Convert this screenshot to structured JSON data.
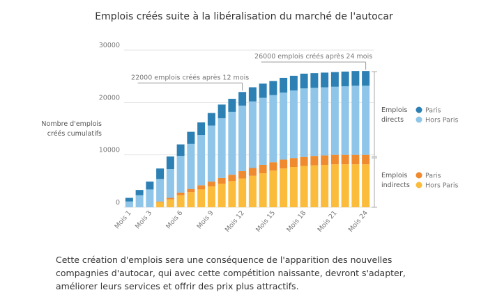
{
  "chart_data": {
    "type": "stacked-bar",
    "title": "Emplois créés suite à la libéralisation du marché de l'autocar",
    "y_label": "Nombre d'emplois créés cumulatifs",
    "categories": [
      "Mois 1",
      null,
      "Mois 3",
      null,
      null,
      "Mois 6",
      null,
      null,
      "Mois 9",
      null,
      null,
      "Mois 12",
      null,
      null,
      "Mois 15",
      null,
      null,
      "Mois 18",
      null,
      null,
      "Mois 21",
      null,
      null,
      "Mois 24"
    ],
    "series": [
      {
        "name": "Hors Paris",
        "group": "Emplois indirects",
        "color": "#fbbb3b",
        "values": [
          0,
          0,
          0,
          1000,
          1500,
          2300,
          2900,
          3400,
          4000,
          4500,
          5000,
          5500,
          6000,
          6500,
          7000,
          7400,
          7700,
          7900,
          8000,
          8100,
          8200,
          8200,
          8200,
          8200
        ]
      },
      {
        "name": "Paris",
        "group": "Emplois indirects",
        "color": "#ef8a2f",
        "values": [
          0,
          0,
          0,
          100,
          300,
          500,
          600,
          800,
          900,
          1100,
          1200,
          1400,
          1500,
          1600,
          1600,
          1700,
          1700,
          1700,
          1800,
          1800,
          1800,
          1800,
          1800,
          1800
        ]
      },
      {
        "name": "Hors Paris",
        "group": "Emplois directs",
        "color": "#8ec5e8",
        "values": [
          1100,
          2300,
          3400,
          4300,
          5500,
          7000,
          8600,
          9600,
          10700,
          11400,
          12000,
          12500,
          12700,
          12800,
          12800,
          12800,
          12900,
          13100,
          13000,
          13000,
          13000,
          13100,
          13200,
          13200
        ]
      },
      {
        "name": "Paris",
        "group": "Emplois directs",
        "color": "#2c80b4",
        "values": [
          700,
          1000,
          1500,
          2000,
          2400,
          2200,
          2300,
          2400,
          2400,
          2600,
          2500,
          2600,
          2700,
          2700,
          2700,
          2800,
          2800,
          2800,
          2800,
          2800,
          2800,
          2800,
          2800,
          2800
        ]
      }
    ],
    "ylim": [
      0,
      30000
    ],
    "yticks": [
      0,
      10000,
      20000,
      30000
    ],
    "grid": true,
    "annotations": [
      {
        "text": "22000 emplois créés après 12 mois",
        "x": "Mois 12",
        "y": 22000
      },
      {
        "text": "26000 emplois créés après 24 mois",
        "x": "Mois 24",
        "y": 26000
      }
    ]
  },
  "caption": "Cette création d'emplois sera une conséquence de l'apparition des nouvelles compagnies d'autocar, qui avec cette compétition naissante, devront s'adapter, améliorer leurs services et offrir des prix plus attractifs."
}
